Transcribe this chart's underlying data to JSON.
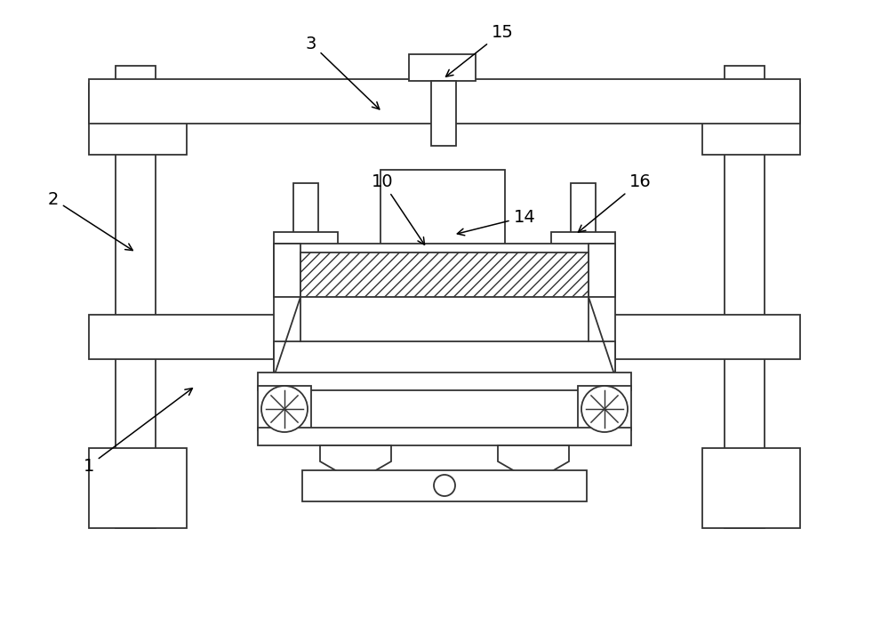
{
  "bg_color": "#ffffff",
  "lc": "#333333",
  "lw": 1.3,
  "fig_width": 10.0,
  "fig_height": 6.94
}
